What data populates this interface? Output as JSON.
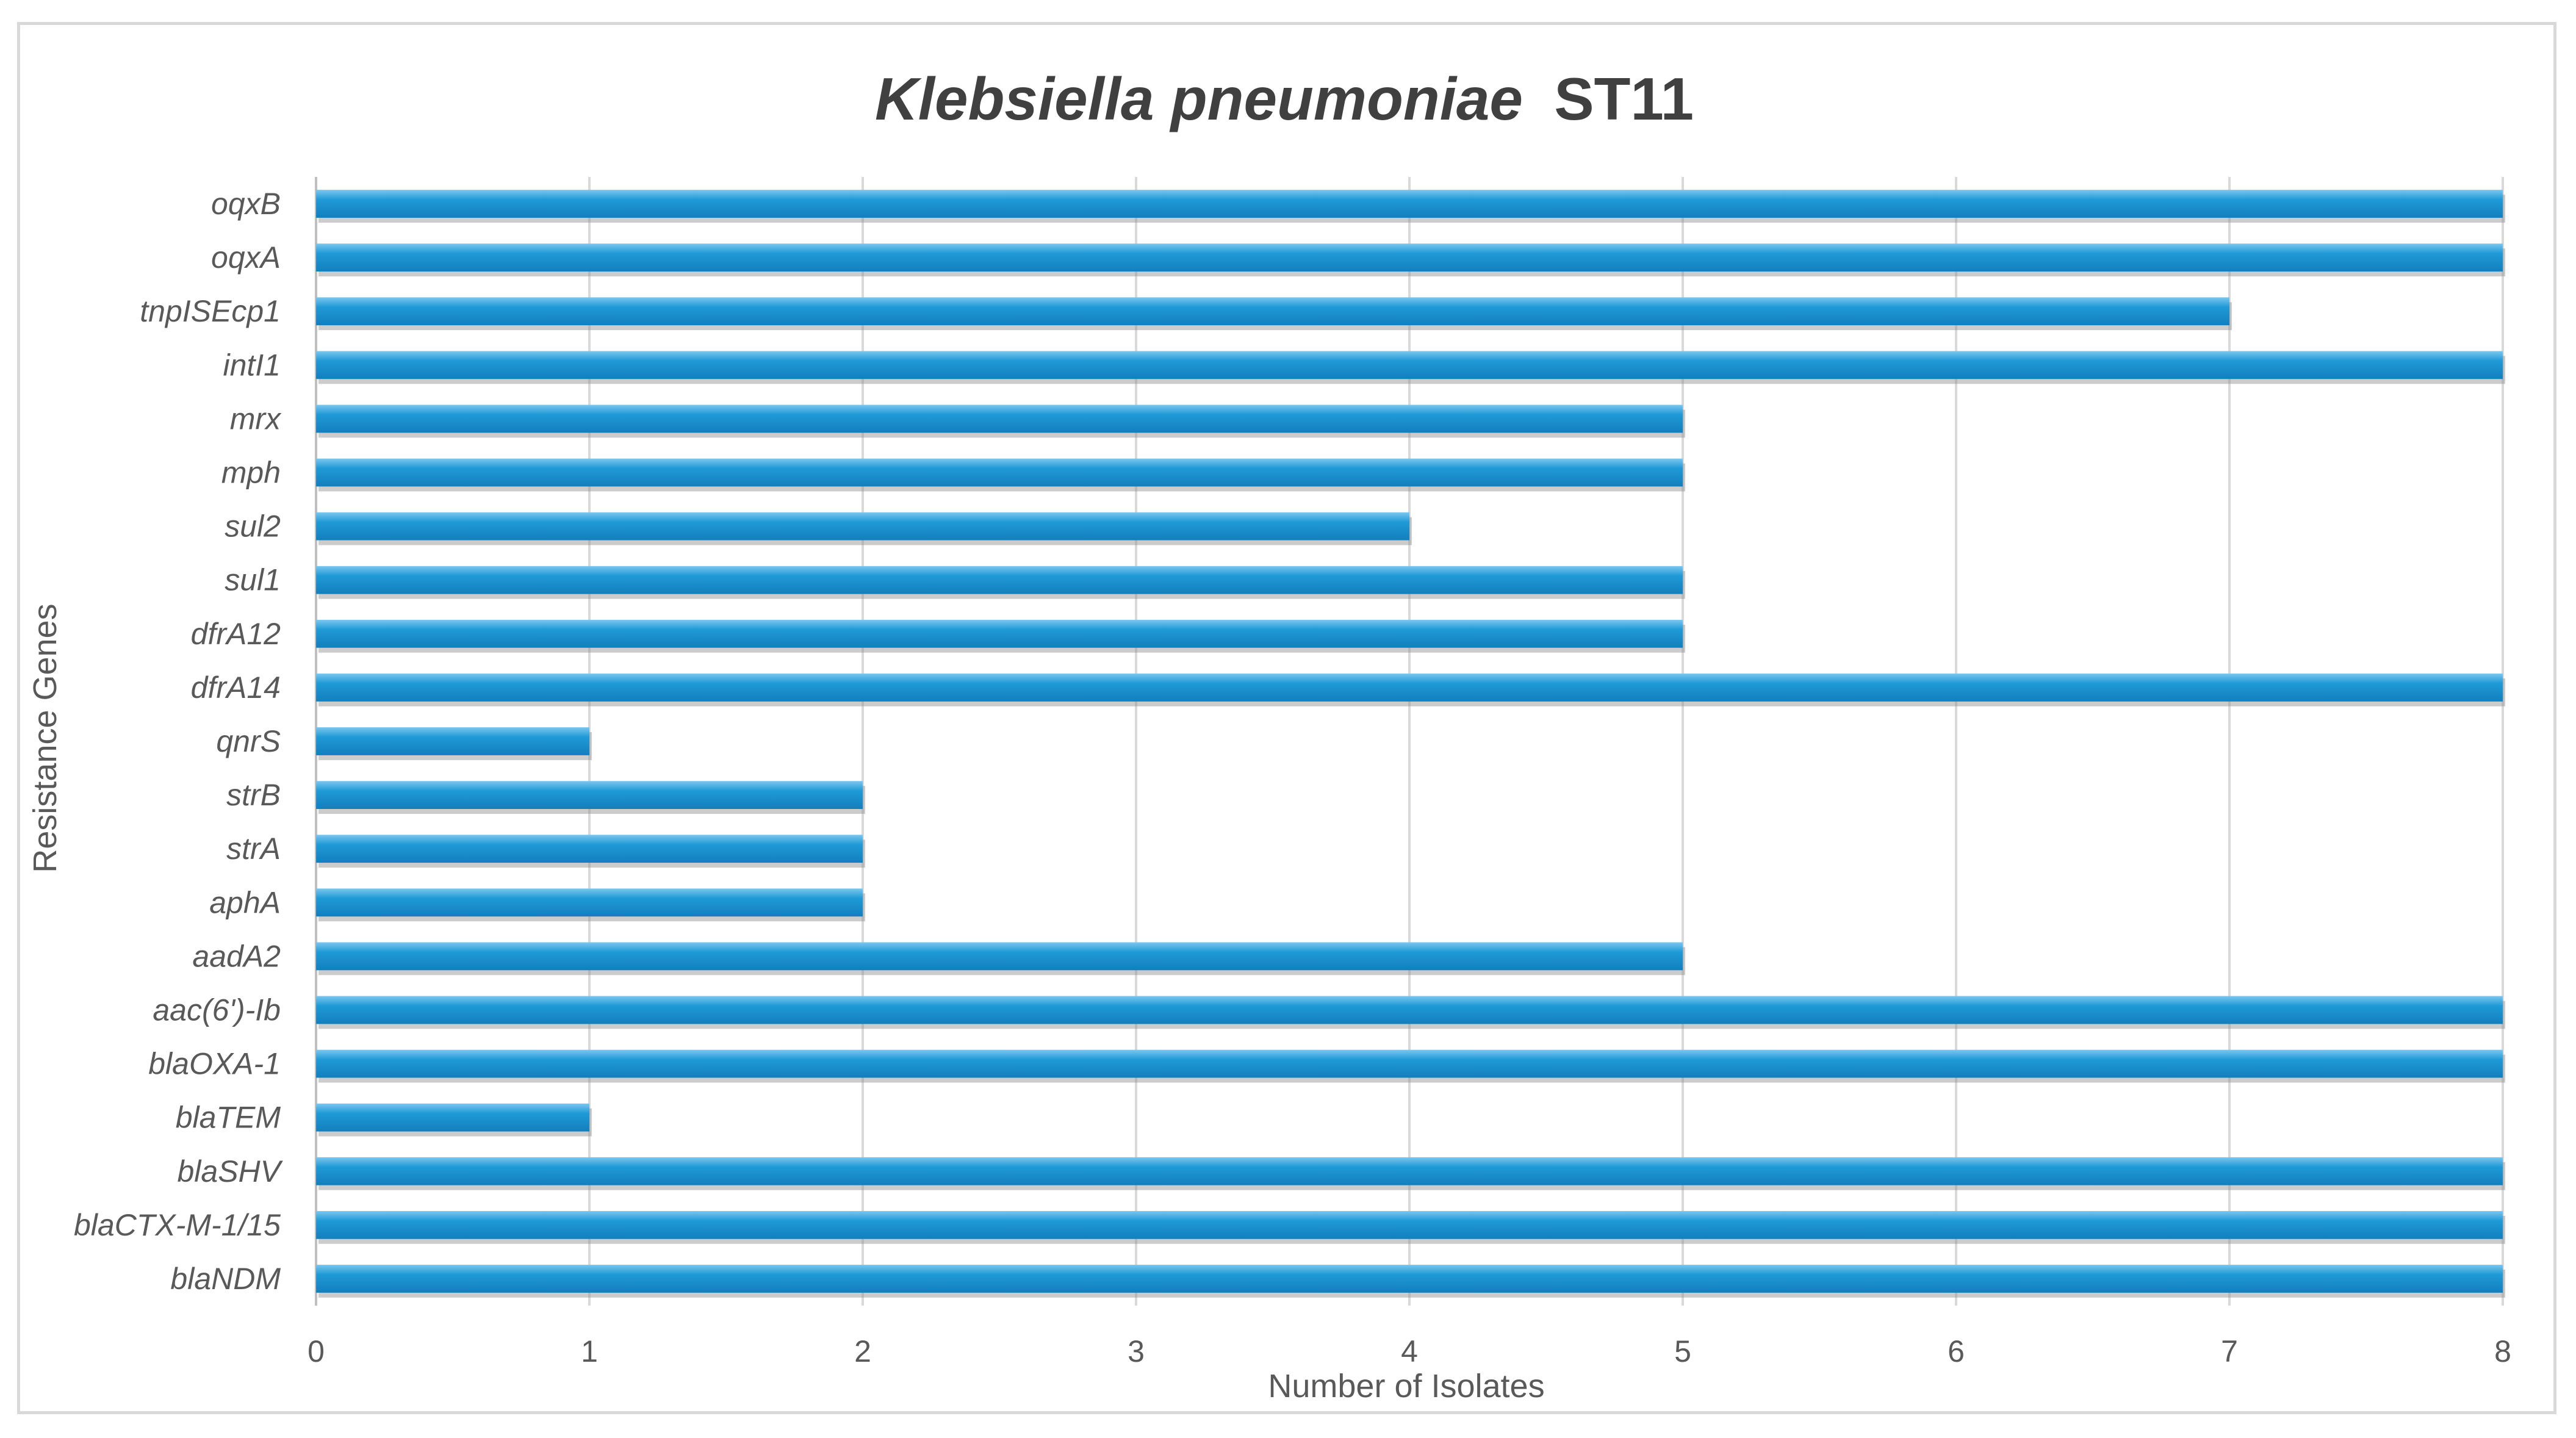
{
  "chart_data": {
    "type": "bar",
    "orientation": "horizontal",
    "title": {
      "italic_part": "Klebsiella pneumoniae",
      "plain_part": "ST11"
    },
    "xlabel": "Number of Isolates",
    "ylabel": "Resistance Genes",
    "xlim": [
      0,
      8
    ],
    "xticks": [
      "0",
      "1",
      "2",
      "3",
      "4",
      "5",
      "6",
      "7",
      "8"
    ],
    "grid": "vertical",
    "bar_color": "#1f9ad6",
    "categories": [
      "oqxB",
      "oqxA",
      "tnpISEcp1",
      "intI1",
      "mrx",
      "mph",
      "sul2",
      "sul1",
      "dfrA12",
      "dfrA14",
      "qnrS",
      "strB",
      "strA",
      "aphA",
      "aadA2",
      "aac(6')-Ib",
      "blaOXA-1",
      "blaTEM",
      "blaSHV",
      "blaCTX-M-1/15",
      "blaNDM"
    ],
    "values": [
      8,
      8,
      7,
      8,
      5,
      5,
      4,
      5,
      5,
      8,
      1,
      2,
      2,
      2,
      5,
      8,
      8,
      1,
      8,
      8,
      8
    ]
  }
}
